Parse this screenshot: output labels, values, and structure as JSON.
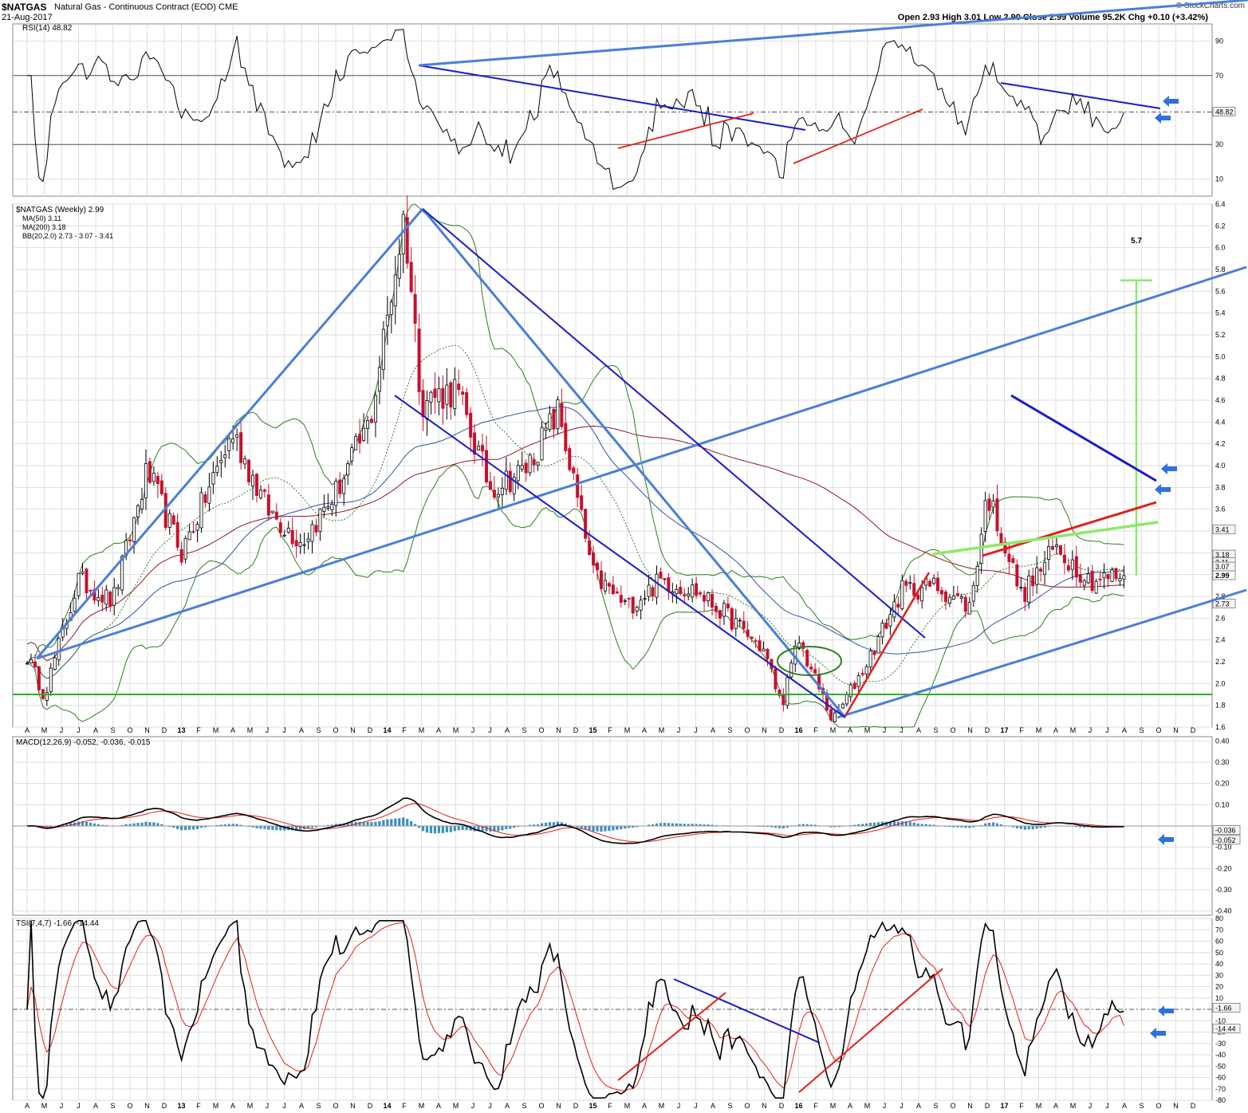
{
  "header": {
    "symbol": "$NATGAS",
    "description": "Natural Gas - Continuous Contract (EOD)",
    "exchange": "CME",
    "date": "21-Aug-2017",
    "credit": "© StockCharts.com",
    "ohlc": "Open 2.93  High 3.01  Low 2.90  Close 2.99  Volume 95.2K  Chg +0.10 (+3.42%)"
  },
  "colors": {
    "grid": "#dedede",
    "candle_up": "#000000",
    "candle_down": "#c8102e",
    "ma50": "#3452a8",
    "ma200": "#8b1a2b",
    "bollinger": "#2f7d1f",
    "trend_blue": "#1a1acc",
    "trend_lightblue": "#4a7fd8",
    "trend_red": "#e0201a",
    "support_green": "#2bb02b",
    "light_green": "#8ee86a",
    "macd_hist": "#3b8fc4",
    "signal_red": "#e0201a"
  },
  "x_axis": {
    "labels": [
      "A",
      "M",
      "J",
      "J",
      "A",
      "S",
      "O",
      "N",
      "D",
      "13",
      "F",
      "M",
      "A",
      "M",
      "J",
      "J",
      "A",
      "S",
      "O",
      "N",
      "D",
      "14",
      "F",
      "M",
      "A",
      "M",
      "J",
      "J",
      "A",
      "S",
      "O",
      "N",
      "D",
      "15",
      "F",
      "M",
      "A",
      "M",
      "J",
      "J",
      "A",
      "S",
      "O",
      "N",
      "D",
      "16",
      "F",
      "M",
      "A",
      "M",
      "J",
      "J",
      "A",
      "S",
      "O",
      "N",
      "D",
      "17",
      "F",
      "M",
      "A",
      "M",
      "J",
      "J",
      "A",
      "S",
      "O",
      "N",
      "D"
    ]
  },
  "panels": {
    "rsi": {
      "legend": "RSI(14) 48.82",
      "ticks": [
        "90",
        "70",
        "30",
        "10"
      ],
      "ylim": [
        0,
        100
      ],
      "last_label": "48.82"
    },
    "price": {
      "legend_title": "$NATGAS (Weekly) 2.99",
      "legend_ma50": "MA(50) 3.11",
      "legend_ma200": "MA(200) 3.18",
      "legend_bb": "BB(20,2.0) 2.73 - 3.07 - 3.41",
      "ticks": [
        "6.4",
        "6.2",
        "6.0",
        "5.8",
        "5.6",
        "5.4",
        "5.2",
        "5.0",
        "4.8",
        "4.6",
        "4.4",
        "4.2",
        "4.0",
        "3.8",
        "3.6",
        "3.4",
        "3.2",
        "3.0",
        "2.8",
        "2.6",
        "2.4",
        "2.2",
        "2.0",
        "1.8",
        "1.6"
      ],
      "ylim": [
        1.6,
        6.4
      ],
      "last_labels": [
        "3.41",
        "3.18",
        "3.11",
        "3.07",
        "2.99",
        "2.73"
      ],
      "target_annotation": "5.7"
    },
    "macd": {
      "legend": "MACD(12,26,9) -0.052, -0.036, -0.015",
      "ticks": [
        "0.40",
        "0.30",
        "0.20",
        "0.10",
        "-0.10",
        "-0.20",
        "-0.30",
        "-0.40"
      ],
      "ylim": [
        -0.42,
        0.42
      ],
      "last_labels": [
        "-0.036",
        "-0.052"
      ]
    },
    "tsi": {
      "legend": "TSI(7,4,7) -1.66, -14.44",
      "ticks": [
        "80",
        "70",
        "60",
        "50",
        "40",
        "30",
        "20",
        "10",
        "-10",
        "-20",
        "-30",
        "-40",
        "-50",
        "-60",
        "-70",
        "-80"
      ],
      "ylim": [
        -80,
        80
      ],
      "last_labels": [
        "-1.66",
        "-14.44"
      ]
    }
  },
  "chart_data": {
    "type": "candlestick",
    "series_name": "$NATGAS (Weekly)",
    "price_key_points": [
      [
        "2012-04",
        2.25
      ],
      [
        "2012-05",
        1.9
      ],
      [
        "2012-07",
        2.95
      ],
      [
        "2012-09",
        2.75
      ],
      [
        "2012-11",
        3.95
      ],
      [
        "2013-01",
        3.2
      ],
      [
        "2013-04",
        4.3
      ],
      [
        "2013-06",
        3.6
      ],
      [
        "2013-08",
        3.3
      ],
      [
        "2013-10",
        3.75
      ],
      [
        "2013-12",
        4.4
      ],
      [
        "2014-02",
        6.3
      ],
      [
        "2014-03",
        4.6
      ],
      [
        "2014-05",
        4.7
      ],
      [
        "2014-07",
        3.8
      ],
      [
        "2014-09",
        3.95
      ],
      [
        "2014-11",
        4.5
      ],
      [
        "2015-01",
        3.0
      ],
      [
        "2015-03",
        2.7
      ],
      [
        "2015-05",
        2.95
      ],
      [
        "2015-07",
        2.85
      ],
      [
        "2015-09",
        2.6
      ],
      [
        "2015-11",
        2.3
      ],
      [
        "2015-12",
        1.8
      ],
      [
        "2016-01",
        2.4
      ],
      [
        "2016-03",
        1.65
      ],
      [
        "2016-05",
        2.2
      ],
      [
        "2016-07",
        2.85
      ],
      [
        "2016-09",
        2.9
      ],
      [
        "2016-11",
        2.7
      ],
      [
        "2016-12",
        3.75
      ],
      [
        "2017-02",
        2.8
      ],
      [
        "2017-04",
        3.25
      ],
      [
        "2017-06",
        2.95
      ],
      [
        "2017-08",
        2.99
      ]
    ],
    "moving_averages": [
      {
        "name": "MA(50)",
        "last": 3.11
      },
      {
        "name": "MA(200)",
        "last": 3.18
      }
    ],
    "bollinger": {
      "lower": 2.73,
      "middle": 3.07,
      "upper": 3.41
    },
    "support_level": 1.9,
    "target_level": 5.7,
    "rsi_levels": [
      70,
      30
    ],
    "rsi_last": 48.82,
    "macd_last": {
      "macd": -0.052,
      "signal": -0.036,
      "histogram": -0.015
    },
    "tsi_last": {
      "tsi": -1.66,
      "signal": -14.44
    }
  }
}
